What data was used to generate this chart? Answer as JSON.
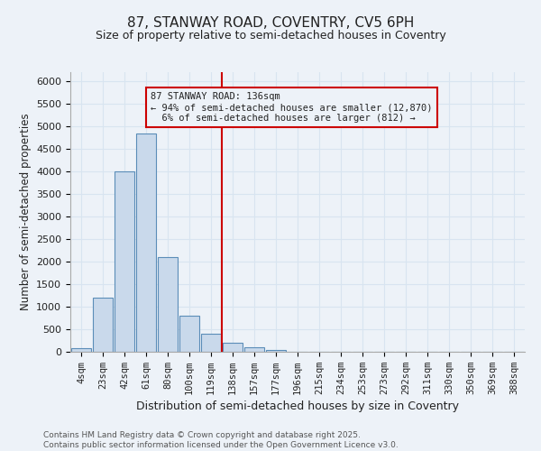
{
  "title1": "87, STANWAY ROAD, COVENTRY, CV5 6PH",
  "title2": "Size of property relative to semi-detached houses in Coventry",
  "xlabel": "Distribution of semi-detached houses by size in Coventry",
  "ylabel": "Number of semi-detached properties",
  "categories": [
    "4sqm",
    "23sqm",
    "42sqm",
    "61sqm",
    "80sqm",
    "100sqm",
    "119sqm",
    "138sqm",
    "157sqm",
    "177sqm",
    "196sqm",
    "215sqm",
    "234sqm",
    "253sqm",
    "273sqm",
    "292sqm",
    "311sqm",
    "330sqm",
    "350sqm",
    "369sqm",
    "388sqm"
  ],
  "values": [
    75,
    1200,
    4000,
    4850,
    2100,
    800,
    400,
    200,
    100,
    40,
    5,
    0,
    0,
    0,
    0,
    0,
    0,
    0,
    0,
    0,
    0
  ],
  "bar_color": "#c9d9eb",
  "bar_edge_color": "#5b8db8",
  "vline_x": 6.5,
  "vline_color": "#cc0000",
  "property_size": "136sqm",
  "pct_smaller": 94,
  "n_smaller": "12,870",
  "pct_larger": 6,
  "n_larger": "812",
  "annotation_box_color": "#cc0000",
  "background_color": "#edf2f8",
  "grid_color": "#d8e4f0",
  "ylim": [
    0,
    6200
  ],
  "yticks": [
    0,
    500,
    1000,
    1500,
    2000,
    2500,
    3000,
    3500,
    4000,
    4500,
    5000,
    5500,
    6000
  ],
  "footer": "Contains HM Land Registry data © Crown copyright and database right 2025.\nContains public sector information licensed under the Open Government Licence v3.0.",
  "font_color": "#222222"
}
